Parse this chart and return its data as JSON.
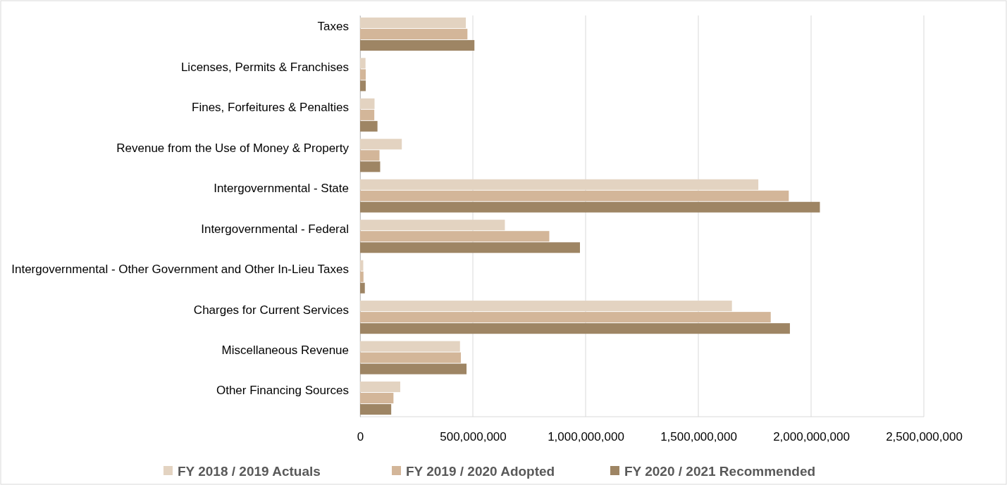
{
  "chart_data": {
    "type": "bar",
    "orientation": "horizontal",
    "categories": [
      "Taxes",
      "Licenses, Permits & Franchises",
      "Fines, Forfeitures & Penalties",
      "Revenue from the Use of Money & Property",
      "Intergovernmental - State",
      "Intergovernmental - Federal",
      "Intergovernmental - Other Government and Other In-Lieu Taxes",
      "Charges for Current Services",
      "Miscellaneous Revenue",
      "Other Financing Sources"
    ],
    "series": [
      {
        "name": "FY 2018 / 2019 Actuals",
        "color": "#e3d3c1",
        "values": [
          469000000,
          24000000,
          64000000,
          185000000,
          1766000000,
          642000000,
          14000000,
          1649000000,
          443000000,
          178000000
        ]
      },
      {
        "name": "FY 2019 / 2020 Adopted",
        "color": "#d3b699",
        "values": [
          476000000,
          25000000,
          63000000,
          86000000,
          1901000000,
          839000000,
          15000000,
          1821000000,
          447000000,
          148000000
        ]
      },
      {
        "name": "FY 2020 / 2021 Recommended",
        "color": "#9e8564",
        "values": [
          507000000,
          25000000,
          77000000,
          89000000,
          2039000000,
          975000000,
          21000000,
          1906000000,
          472000000,
          138000000
        ]
      }
    ],
    "xlim": [
      0,
      2500000000
    ],
    "xticks": [
      {
        "value": 0,
        "label": "0"
      },
      {
        "value": 500000000,
        "label": "500,000,000"
      },
      {
        "value": 1000000000,
        "label": "1,000,000,000"
      },
      {
        "value": 1500000000,
        "label": "1,500,000,000"
      },
      {
        "value": 2000000000,
        "label": "2,000,000,000"
      },
      {
        "value": 2500000000,
        "label": "2,500,000,000"
      }
    ],
    "grid": "x",
    "legend": "bottom"
  }
}
